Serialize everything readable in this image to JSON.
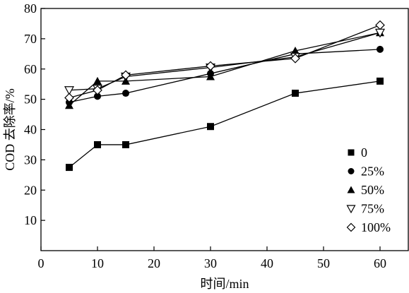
{
  "chart_data": {
    "type": "line",
    "xlabel": "时间/min",
    "ylabel": "COD 去除率/%",
    "xlim": [
      0,
      65
    ],
    "ylim": [
      0,
      80
    ],
    "xticks": [
      0,
      10,
      20,
      30,
      40,
      50,
      60
    ],
    "yticks": [
      10,
      20,
      30,
      40,
      50,
      60,
      70,
      80
    ],
    "x": [
      5,
      10,
      15,
      30,
      45,
      60
    ],
    "grid": false,
    "legend_position": "right",
    "series": [
      {
        "name": "0",
        "marker": "square",
        "values": [
          27.5,
          35,
          35,
          41,
          52,
          56
        ]
      },
      {
        "name": "25%",
        "marker": "circle",
        "values": [
          49,
          51,
          52,
          58.5,
          65,
          66.5
        ]
      },
      {
        "name": "50%",
        "marker": "triangle-up",
        "values": [
          48,
          56,
          56,
          57.5,
          66,
          72
        ]
      },
      {
        "name": "75%",
        "marker": "triangle-down",
        "values": [
          53,
          53.5,
          57.5,
          60.5,
          64,
          72
        ]
      },
      {
        "name": "100%",
        "marker": "diamond",
        "values": [
          50.5,
          53,
          58,
          61,
          63.5,
          74.5
        ]
      }
    ]
  }
}
